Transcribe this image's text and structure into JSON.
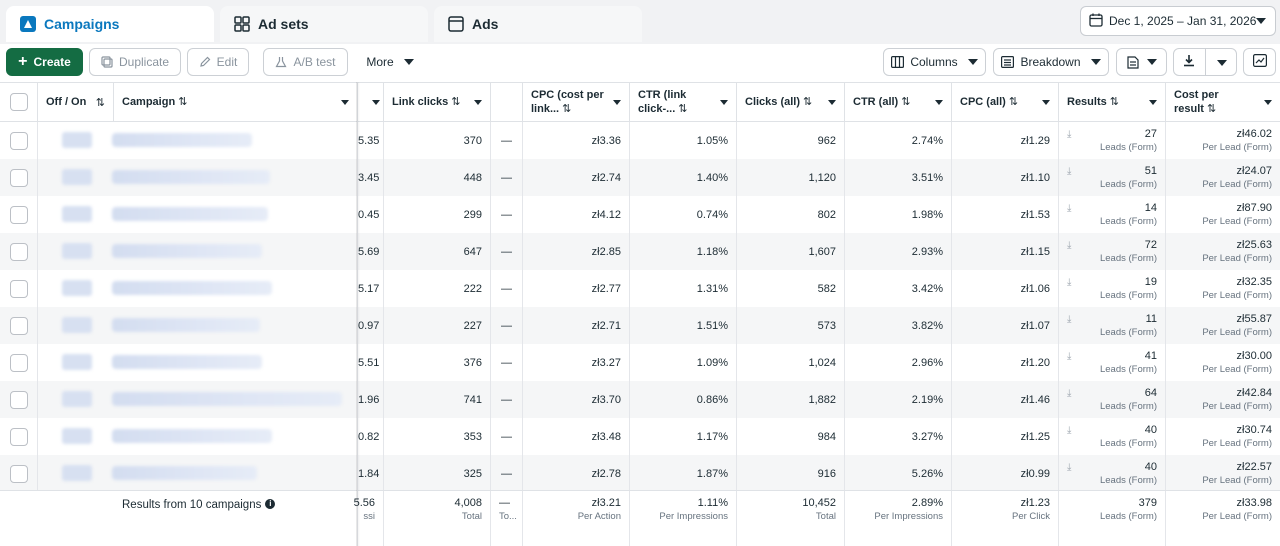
{
  "tabs": {
    "campaigns": "Campaigns",
    "adsets": "Ad sets",
    "ads": "Ads"
  },
  "date_range": "Dec 1, 2025 – Jan 31, 2026",
  "toolbar": {
    "create": "Create",
    "duplicate": "Duplicate",
    "edit": "Edit",
    "ab_test": "A/B test",
    "more": "More",
    "columns": "Columns",
    "breakdown": "Breakdown"
  },
  "colors": {
    "accent": "#0a78be",
    "create": "#146c43"
  },
  "headers": {
    "off_on": "Off / On",
    "campaign": "Campaign",
    "link_clicks": "Link clicks",
    "cpc_link": "CPC (cost per link...",
    "ctr_link": "CTR (link click-...",
    "clicks_all": "Clicks (all)",
    "ctr_all": "CTR (all)",
    "cpc_all": "CPC (all)",
    "results": "Results",
    "cost_per_result": "Cost per result"
  },
  "rows": [
    {
      "partial": "5.35",
      "link_clicks": "370",
      "dash": "—",
      "cpc_link": "zł3.36",
      "ctr_link": "1.05%",
      "clicks_all": "962",
      "ctr_all": "2.74%",
      "cpc_all": "zł1.29",
      "results": "27",
      "results_sub": "Leads (Form)",
      "cost": "zł46.02",
      "cost_sub": "Per Lead (Form)"
    },
    {
      "partial": "3.45",
      "link_clicks": "448",
      "dash": "—",
      "cpc_link": "zł2.74",
      "ctr_link": "1.40%",
      "clicks_all": "1,120",
      "ctr_all": "3.51%",
      "cpc_all": "zł1.10",
      "results": "51",
      "results_sub": "Leads (Form)",
      "cost": "zł24.07",
      "cost_sub": "Per Lead (Form)"
    },
    {
      "partial": "0.45",
      "link_clicks": "299",
      "dash": "—",
      "cpc_link": "zł4.12",
      "ctr_link": "0.74%",
      "clicks_all": "802",
      "ctr_all": "1.98%",
      "cpc_all": "zł1.53",
      "results": "14",
      "results_sub": "Leads (Form)",
      "cost": "zł87.90",
      "cost_sub": "Per Lead (Form)"
    },
    {
      "partial": "5.69",
      "link_clicks": "647",
      "dash": "—",
      "cpc_link": "zł2.85",
      "ctr_link": "1.18%",
      "clicks_all": "1,607",
      "ctr_all": "2.93%",
      "cpc_all": "zł1.15",
      "results": "72",
      "results_sub": "Leads (Form)",
      "cost": "zł25.63",
      "cost_sub": "Per Lead (Form)"
    },
    {
      "partial": "5.17",
      "link_clicks": "222",
      "dash": "—",
      "cpc_link": "zł2.77",
      "ctr_link": "1.31%",
      "clicks_all": "582",
      "ctr_all": "3.42%",
      "cpc_all": "zł1.06",
      "results": "19",
      "results_sub": "Leads (Form)",
      "cost": "zł32.35",
      "cost_sub": "Per Lead (Form)"
    },
    {
      "partial": "0.97",
      "link_clicks": "227",
      "dash": "—",
      "cpc_link": "zł2.71",
      "ctr_link": "1.51%",
      "clicks_all": "573",
      "ctr_all": "3.82%",
      "cpc_all": "zł1.07",
      "results": "11",
      "results_sub": "Leads (Form)",
      "cost": "zł55.87",
      "cost_sub": "Per Lead (Form)"
    },
    {
      "partial": "5.51",
      "link_clicks": "376",
      "dash": "—",
      "cpc_link": "zł3.27",
      "ctr_link": "1.09%",
      "clicks_all": "1,024",
      "ctr_all": "2.96%",
      "cpc_all": "zł1.20",
      "results": "41",
      "results_sub": "Leads (Form)",
      "cost": "zł30.00",
      "cost_sub": "Per Lead (Form)"
    },
    {
      "partial": "1.96",
      "link_clicks": "741",
      "dash": "—",
      "cpc_link": "zł3.70",
      "ctr_link": "0.86%",
      "clicks_all": "1,882",
      "ctr_all": "2.19%",
      "cpc_all": "zł1.46",
      "results": "64",
      "results_sub": "Leads (Form)",
      "cost": "zł42.84",
      "cost_sub": "Per Lead (Form)"
    },
    {
      "partial": "0.82",
      "link_clicks": "353",
      "dash": "—",
      "cpc_link": "zł3.48",
      "ctr_link": "1.17%",
      "clicks_all": "984",
      "ctr_all": "3.27%",
      "cpc_all": "zł1.25",
      "results": "40",
      "results_sub": "Leads (Form)",
      "cost": "zł30.74",
      "cost_sub": "Per Lead (Form)"
    },
    {
      "partial": "1.84",
      "link_clicks": "325",
      "dash": "—",
      "cpc_link": "zł2.78",
      "ctr_link": "1.87%",
      "clicks_all": "916",
      "ctr_all": "5.26%",
      "cpc_all": "zł0.99",
      "results": "40",
      "results_sub": "Leads (Form)",
      "cost": "zł22.57",
      "cost_sub": "Per Lead (Form)"
    }
  ],
  "summary": {
    "label": "Results from 10 campaigns",
    "partial": "5.56",
    "partial_sub": "ssi",
    "link_clicks": "4,008",
    "link_clicks_sub": "Total",
    "dash": "—",
    "dash_sub": "To...",
    "cpc_link": "zł3.21",
    "cpc_link_sub": "Per Action",
    "ctr_link": "1.11%",
    "ctr_link_sub": "Per Impressions",
    "clicks_all": "10,452",
    "clicks_all_sub": "Total",
    "ctr_all": "2.89%",
    "ctr_all_sub": "Per Impressions",
    "cpc_all": "zł1.23",
    "cpc_all_sub": "Per Click",
    "results": "379",
    "results_sub": "Leads (Form)",
    "cost": "zł33.98",
    "cost_sub": "Per Lead (Form)"
  }
}
